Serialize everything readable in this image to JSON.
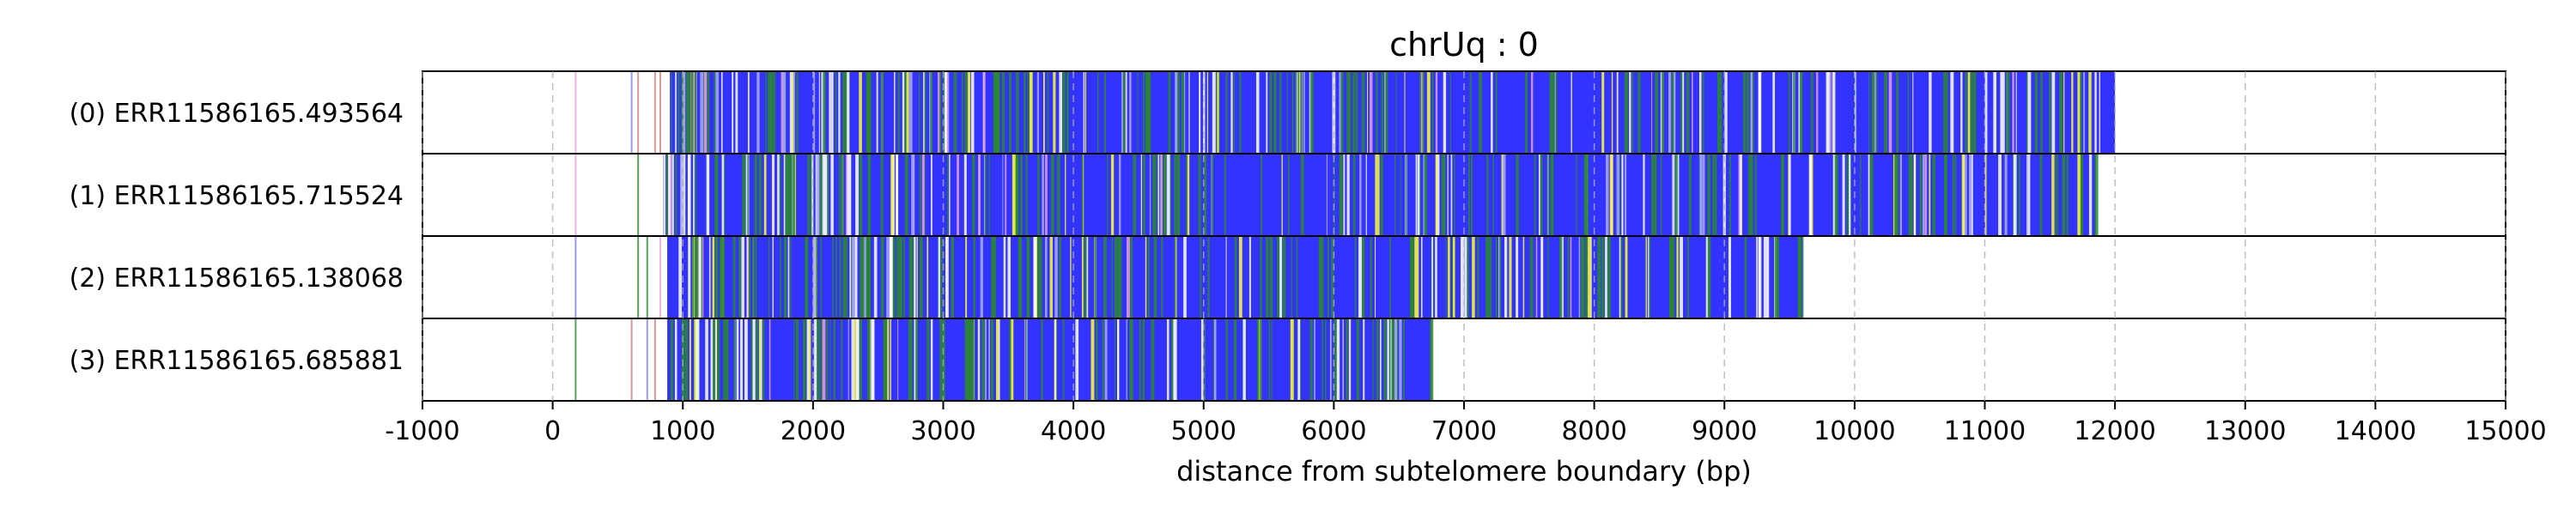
{
  "chart_data": {
    "type": "heatmap",
    "title": "chrUq : 0",
    "xlabel": "distance from subtelomere boundary (bp)",
    "xlim": [
      -1000,
      15000
    ],
    "x_ticks": [
      -1000,
      0,
      1000,
      2000,
      3000,
      4000,
      5000,
      6000,
      7000,
      8000,
      9000,
      10000,
      11000,
      12000,
      13000,
      14000,
      15000
    ],
    "x_tick_labels": [
      "-1000",
      "0",
      "1000",
      "2000",
      "3000",
      "4000",
      "5000",
      "6000",
      "7000",
      "8000",
      "9000",
      "10000",
      "11000",
      "12000",
      "13000",
      "14000",
      "15000"
    ],
    "grid": "vertical dashed",
    "rows": [
      {
        "label": "(0) ERR11586165.493564",
        "dense_start": 900,
        "end": 12000
      },
      {
        "label": "(1) ERR11586165.715524",
        "dense_start": 850,
        "end": 11850
      },
      {
        "label": "(2) ERR11586165.138068",
        "dense_start": 880,
        "end": 9600
      },
      {
        "label": "(3) ERR11586165.685881",
        "dense_start": 880,
        "end": 6750
      }
    ],
    "colors": {
      "base": "#3333ff",
      "green": "#2a8a2a",
      "yellow": "#ffff33",
      "white": "#ffffff",
      "pink": "#e8a0d8",
      "lightblue": "#aaaaff"
    }
  }
}
